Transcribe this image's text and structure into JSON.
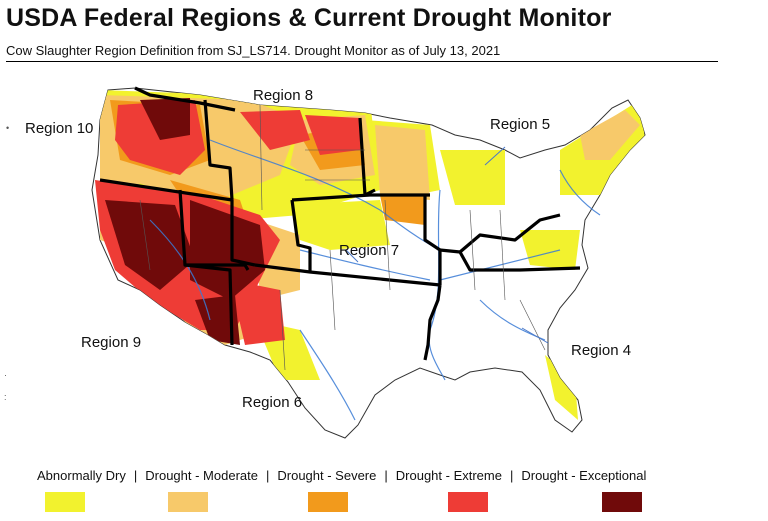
{
  "title": "USDA Federal Regions & Current Drought Monitor",
  "subtitle": "Cow Slaughter Region Definition from SJ_LS714.  Drought Monitor as of July 13, 2021",
  "regions": {
    "r10": "Region 10",
    "r8": "Region 8",
    "r5": "Region 5",
    "r7": "Region 7",
    "r9": "Region 9",
    "r4": "Region 4",
    "r6": "Region 6"
  },
  "legend": {
    "sep": "|",
    "items": [
      {
        "label": "Abnormally Dry",
        "color": "#f2f22e"
      },
      {
        "label": "Drought - Moderate",
        "color": "#f7c96a"
      },
      {
        "label": "Drought - Severe",
        "color": "#f29a1c"
      },
      {
        "label": "Drought - Extreme",
        "color": "#ee3c36"
      },
      {
        "label": "Drought - Exceptional",
        "color": "#700a0a"
      }
    ]
  }
}
